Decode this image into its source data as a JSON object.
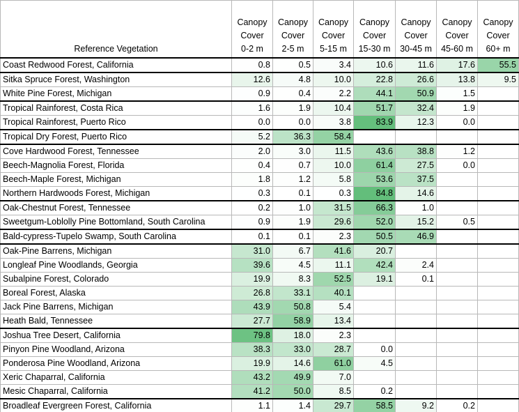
{
  "header": {
    "reference_label": "Reference Vegetation",
    "columns": [
      {
        "line1": "Canopy",
        "line2": "Cover",
        "line3": "0-2 m"
      },
      {
        "line1": "Canopy",
        "line2": "Cover",
        "line3": "2-5 m"
      },
      {
        "line1": "Canopy",
        "line2": "Cover",
        "line3": "5-15 m"
      },
      {
        "line1": "Canopy",
        "line2": "Cover",
        "line3": "15-30 m"
      },
      {
        "line1": "Canopy",
        "line2": "Cover",
        "line3": "30-45 m"
      },
      {
        "line1": "Canopy",
        "line2": "Cover",
        "line3": "45-60 m"
      },
      {
        "line1": "Canopy",
        "line2": "Cover",
        "line3": "60+ m"
      }
    ]
  },
  "rows": [
    {
      "name": "Coast Redwood Forest, California",
      "values": [
        "0.8",
        "0.5",
        "3.4",
        "10.6",
        "11.6",
        "17.6",
        "55.5"
      ]
    },
    {
      "name": "Sitka Spruce Forest, Washington",
      "values": [
        "12.6",
        "4.8",
        "10.0",
        "22.8",
        "26.6",
        "13.8",
        "9.5"
      ]
    },
    {
      "name": "White Pine Forest, Michigan",
      "values": [
        "0.9",
        "0.4",
        "2.2",
        "44.1",
        "50.9",
        "1.5",
        ""
      ]
    },
    {
      "name": "Tropical Rainforest, Costa Rica",
      "values": [
        "1.6",
        "1.9",
        "10.4",
        "51.7",
        "32.4",
        "1.9",
        ""
      ]
    },
    {
      "name": "Tropical Rainforest, Puerto Rico",
      "values": [
        "0.0",
        "0.0",
        "3.8",
        "83.9",
        "12.3",
        "0.0",
        ""
      ]
    },
    {
      "name": "Tropical Dry Forest, Puerto Rico",
      "values": [
        "5.2",
        "36.3",
        "58.4",
        "",
        "",
        "",
        ""
      ]
    },
    {
      "name": "Cove Hardwood Forest, Tennessee",
      "values": [
        "2.0",
        "3.0",
        "11.5",
        "43.6",
        "38.8",
        "1.2",
        ""
      ]
    },
    {
      "name": "Beech-Magnolia Forest, Florida",
      "values": [
        "0.4",
        "0.7",
        "10.0",
        "61.4",
        "27.5",
        "0.0",
        ""
      ]
    },
    {
      "name": "Beech-Maple Forest, Michigan",
      "values": [
        "1.8",
        "1.2",
        "5.8",
        "53.6",
        "37.5",
        "",
        ""
      ]
    },
    {
      "name": "Northern Hardwoods Forest, Michigan",
      "values": [
        "0.3",
        "0.1",
        "0.3",
        "84.8",
        "14.6",
        "",
        ""
      ]
    },
    {
      "name": "Oak-Chestnut Forest, Tennessee",
      "values": [
        "0.2",
        "1.0",
        "31.5",
        "66.3",
        "1.0",
        "",
        ""
      ]
    },
    {
      "name": "Sweetgum-Loblolly Pine Bottomland, South Carolina",
      "values": [
        "0.9",
        "1.9",
        "29.6",
        "52.0",
        "15.2",
        "0.5",
        ""
      ]
    },
    {
      "name": "Bald-cypress-Tupelo Swamp, South Carolina",
      "values": [
        "0.1",
        "0.1",
        "2.3",
        "50.5",
        "46.9",
        "",
        ""
      ]
    },
    {
      "name": "Oak-Pine Barrens, Michigan",
      "values": [
        "31.0",
        "6.7",
        "41.6",
        "20.7",
        "",
        "",
        ""
      ]
    },
    {
      "name": "Longleaf Pine Woodlands, Georgia",
      "values": [
        "39.6",
        "4.5",
        "11.1",
        "42.4",
        "2.4",
        "",
        ""
      ]
    },
    {
      "name": "Subalpine Forest, Colorado",
      "values": [
        "19.9",
        "8.3",
        "52.5",
        "19.1",
        "0.1",
        "",
        ""
      ]
    },
    {
      "name": "Boreal Forest, Alaska",
      "values": [
        "26.8",
        "33.1",
        "40.1",
        "",
        "",
        "",
        ""
      ]
    },
    {
      "name": "Jack Pine Barrens, Michigan",
      "values": [
        "43.9",
        "50.8",
        "5.4",
        "",
        "",
        "",
        ""
      ]
    },
    {
      "name": "Heath Bald, Tennessee",
      "values": [
        "27.7",
        "58.9",
        "13.4",
        "",
        "",
        "",
        ""
      ]
    },
    {
      "name": "Joshua Tree Desert, California",
      "values": [
        "79.8",
        "18.0",
        "2.3",
        "",
        "",
        "",
        ""
      ]
    },
    {
      "name": "Pinyon Pine Woodland, Arizona",
      "values": [
        "38.3",
        "33.0",
        "28.7",
        "0.0",
        "",
        "",
        ""
      ]
    },
    {
      "name": "Ponderosa Pine Woodland, Arizona",
      "values": [
        "19.9",
        "14.6",
        "61.0",
        "4.5",
        "",
        "",
        ""
      ]
    },
    {
      "name": "Xeric Chaparral, California",
      "values": [
        "43.2",
        "49.9",
        "7.0",
        "",
        "",
        "",
        ""
      ]
    },
    {
      "name": "Mesic Chaparral, California",
      "values": [
        "41.2",
        "50.0",
        "8.5",
        "0.2",
        "",
        "",
        ""
      ]
    },
    {
      "name": "Broadleaf Evergreen Forest, California",
      "values": [
        "1.1",
        "1.4",
        "29.7",
        "58.5",
        "9.2",
        "0.2",
        ""
      ]
    }
  ],
  "band_breaks": [
    1,
    3,
    5,
    6,
    10,
    12,
    13,
    19,
    24
  ],
  "heat_colors": {
    "low": "#ffffff",
    "high": "#63be7b",
    "empty": "#ffffff"
  }
}
